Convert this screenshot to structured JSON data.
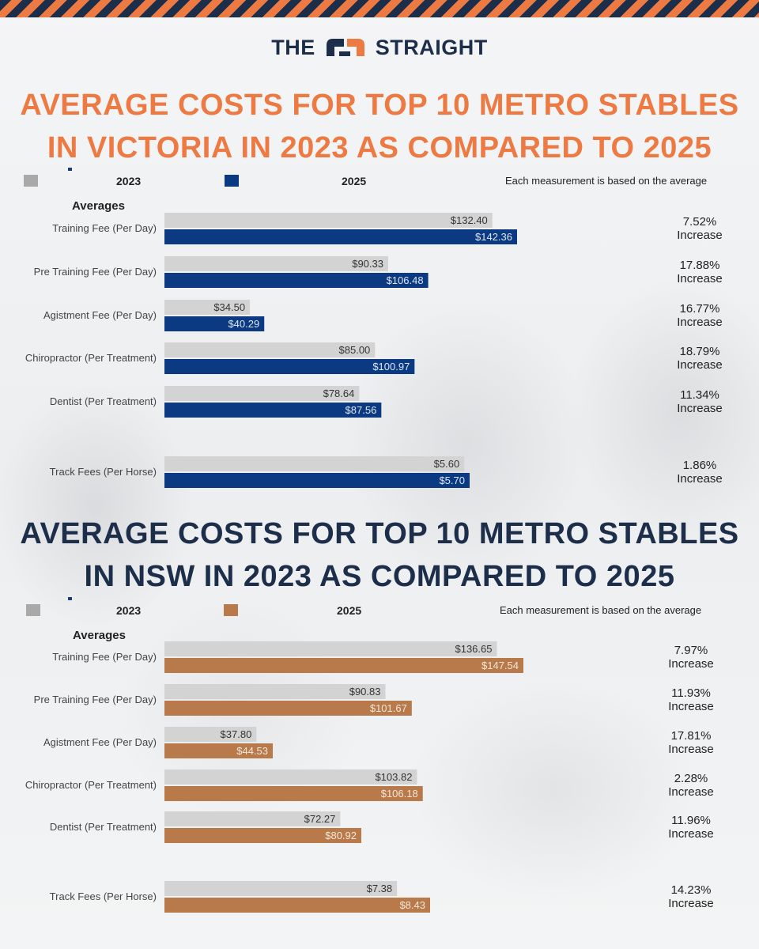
{
  "brand": {
    "left": "THE",
    "right": "STRAIGHT"
  },
  "colors": {
    "orange": "#ee7a43",
    "navy": "#1d2e4a",
    "blue": "#0c3a82",
    "brown": "#b87a4a",
    "grey": "#d3d3d3"
  },
  "chart_data": [
    {
      "type": "bar",
      "title": [
        "AVERAGE COSTS FOR TOP 10 METRO STABLES",
        "IN VICTORIA IN 2023 AS COMPARED TO 2025"
      ],
      "subtitle": "Averages",
      "note": "Each measurement is based on the average",
      "categories": [
        "Training Fee (Per Day)",
        "Pre Training Fee (Per Day)",
        "Agistment Fee (Per Day)",
        "Chiropractor (Per Treatment)",
        "Dentist (Per Treatment)",
        "Track Fees (Per Horse)"
      ],
      "series": [
        {
          "name": "2023",
          "color": "#d3d3d3",
          "values": [
            132.4,
            90.33,
            34.5,
            85.0,
            78.64,
            5.6
          ],
          "labels": [
            "$132.40",
            "$90.33",
            "$34.50",
            "$85.00",
            "$78.64",
            "$5.60"
          ]
        },
        {
          "name": "2025",
          "color": "#0c3a82",
          "values": [
            142.36,
            106.48,
            40.29,
            100.97,
            87.56,
            5.7
          ],
          "labels": [
            "$142.36",
            "$106.48",
            "$40.29",
            "$100.97",
            "$87.56",
            "$5.70"
          ]
        }
      ],
      "changes": [
        {
          "pct": "7.52%",
          "word": "Increase"
        },
        {
          "pct": "17.88%",
          "word": "Increase"
        },
        {
          "pct": "16.77%",
          "word": "Increase"
        },
        {
          "pct": "18.79%",
          "word": "Increase"
        },
        {
          "pct": "11.34%",
          "word": "Increase"
        },
        {
          "pct": "1.86%",
          "word": "Increase"
        }
      ],
      "legend": "top",
      "grid": false
    },
    {
      "type": "bar",
      "title": [
        "AVERAGE COSTS FOR TOP 10 METRO STABLES",
        "IN NSW IN 2023 AS COMPARED TO 2025"
      ],
      "subtitle": "Averages",
      "note": "Each measurement is based on the average",
      "categories": [
        "Training Fee (Per Day)",
        "Pre Training Fee (Per Day)",
        "Agistment Fee (Per Day)",
        "Chiropractor (Per Treatment)",
        "Dentist (Per Treatment)",
        "Track Fees (Per Horse)"
      ],
      "series": [
        {
          "name": "2023",
          "color": "#d3d3d3",
          "values": [
            136.65,
            90.83,
            37.8,
            103.82,
            72.27,
            7.38
          ],
          "labels": [
            "$136.65",
            "$90.83",
            "$37.80",
            "$103.82",
            "$72.27",
            "$7.38"
          ]
        },
        {
          "name": "2025",
          "color": "#b87a4a",
          "values": [
            147.54,
            101.67,
            44.53,
            106.18,
            80.92,
            8.43
          ],
          "labels": [
            "$147.54",
            "$101.67",
            "$44.53",
            "$106.18",
            "$80.92",
            "$8.43"
          ]
        }
      ],
      "changes": [
        {
          "pct": "7.97%",
          "word": "Increase"
        },
        {
          "pct": "11.93%",
          "word": "Increase"
        },
        {
          "pct": "17.81%",
          "word": "Increase"
        },
        {
          "pct": "2.28%",
          "word": "Increase"
        },
        {
          "pct": "11.96%",
          "word": "Increase"
        },
        {
          "pct": "14.23%",
          "word": "Increase"
        }
      ],
      "legend": "top",
      "grid": false
    }
  ]
}
